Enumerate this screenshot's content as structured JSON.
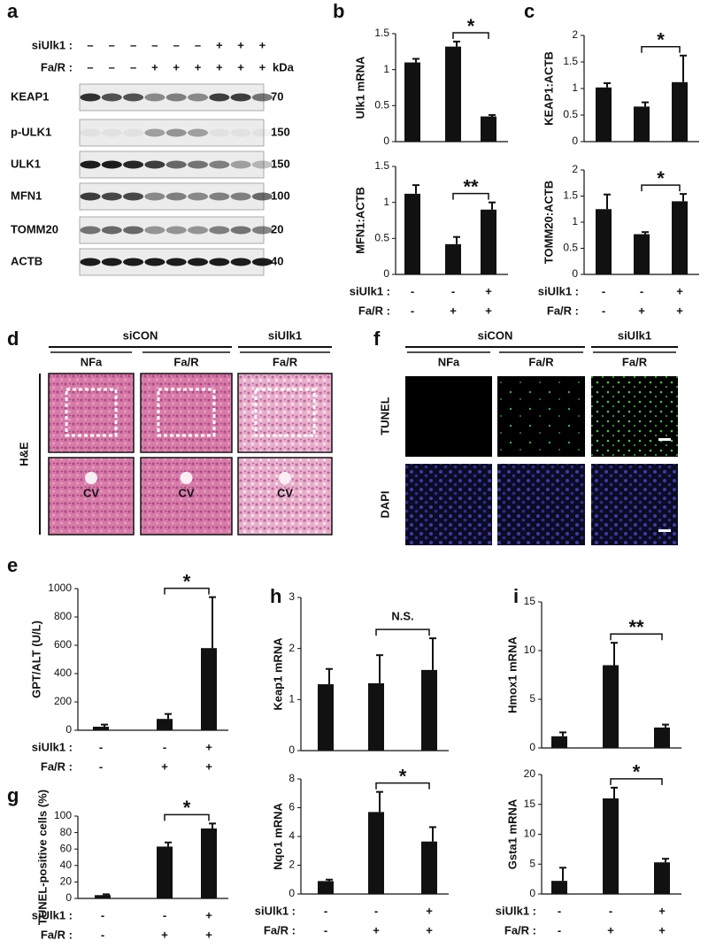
{
  "panel_labels": [
    "a",
    "b",
    "c",
    "d",
    "e",
    "f",
    "g",
    "h",
    "i"
  ],
  "blot": {
    "condition_rows": [
      {
        "label": "siUlk1 :",
        "signs": [
          "–",
          "–",
          "–",
          "–",
          "–",
          "–",
          "+",
          "+",
          "+"
        ]
      },
      {
        "label": "Fa/R :",
        "signs": [
          "–",
          "–",
          "–",
          "+",
          "+",
          "+",
          "+",
          "+",
          "+"
        ]
      }
    ],
    "kda_label": "kDa",
    "rows": [
      {
        "name": "KEAP1",
        "marker": 70
      },
      {
        "name": "p-ULK1",
        "marker": 150
      },
      {
        "name": "ULK1",
        "marker": 150
      },
      {
        "name": "MFN1",
        "marker": 100
      },
      {
        "name": "TOMM20",
        "marker": 20
      },
      {
        "name": "ACTB",
        "marker": 40
      }
    ]
  },
  "histology": {
    "group_headers": [
      "siCON",
      "siUlk1"
    ],
    "conditions": [
      "NFa",
      "Fa/R",
      "Fa/R"
    ],
    "stain": "H&E",
    "vessel_labels": [
      "CV",
      "CV",
      "CV"
    ]
  },
  "fluorescence": {
    "group_headers": [
      "siCON",
      "siUlk1"
    ],
    "conditions": [
      "NFa",
      "Fa/R",
      "Fa/R"
    ],
    "stains": [
      "TUNEL",
      "DAPI"
    ]
  },
  "chart_data": [
    {
      "type": "bar",
      "ylabel": "Ulk1 mRNA",
      "values": [
        1.1,
        1.32,
        0.35
      ],
      "errors": [
        0.05,
        0.07,
        0.02
      ],
      "ylim": [
        0,
        1.5
      ],
      "yticks": [
        0,
        0.5,
        1,
        1.5
      ],
      "color": "#111111",
      "significance": "*"
    },
    {
      "type": "bar",
      "ylabel": "MFN1:ACTB",
      "values": [
        1.12,
        0.42,
        0.9
      ],
      "errors": [
        0.12,
        0.1,
        0.1
      ],
      "ylim": [
        0,
        1.5
      ],
      "yticks": [
        0,
        0.5,
        1,
        1.5
      ],
      "color": "#111111",
      "significance": "**",
      "conditions": [
        {
          "label": "siUlk1 :",
          "signs": [
            "-",
            "-",
            "+"
          ]
        },
        {
          "label": "Fa/R :",
          "signs": [
            "-",
            "+",
            "+"
          ]
        }
      ]
    },
    {
      "type": "bar",
      "ylabel": "KEAP1:ACTB",
      "values": [
        1.02,
        0.66,
        1.12
      ],
      "errors": [
        0.08,
        0.08,
        0.5
      ],
      "ylim": [
        0,
        2
      ],
      "yticks": [
        0,
        0.5,
        1,
        1.5,
        2
      ],
      "color": "#111111",
      "significance": "*"
    },
    {
      "type": "bar",
      "ylabel": "TOMM20:ACTB",
      "values": [
        1.25,
        0.77,
        1.4
      ],
      "errors": [
        0.28,
        0.04,
        0.14
      ],
      "ylim": [
        0,
        2
      ],
      "yticks": [
        0,
        0.5,
        1,
        1.5,
        2
      ],
      "color": "#111111",
      "significance": "*",
      "conditions": [
        {
          "label": "siUlk1 :",
          "signs": [
            "-",
            "-",
            "+"
          ]
        },
        {
          "label": "Fa/R :",
          "signs": [
            "-",
            "+",
            "+"
          ]
        }
      ]
    },
    {
      "type": "bar",
      "ylabel": "GPT/ALT (U/L)",
      "values": [
        25,
        80,
        580
      ],
      "errors": [
        15,
        35,
        360
      ],
      "ylim": [
        0,
        1000
      ],
      "yticks": [
        0,
        200,
        400,
        600,
        800,
        1000
      ],
      "color": "#111111",
      "significance": "*",
      "conditions": [
        {
          "label": "siUlk1 :",
          "signs": [
            "-",
            "-",
            "+"
          ]
        },
        {
          "label": "Fa/R :",
          "signs": [
            "-",
            "+",
            "+"
          ]
        }
      ]
    },
    {
      "type": "bar",
      "ylabel": "TUNEL-positive cells (%)",
      "values": [
        4,
        63,
        85
      ],
      "errors": [
        1,
        5,
        6
      ],
      "ylim": [
        0,
        100
      ],
      "yticks": [
        0,
        20,
        40,
        60,
        80,
        100
      ],
      "color": "#111111",
      "significance": "*",
      "conditions": [
        {
          "label": "siUlk1 :",
          "signs": [
            "-",
            "-",
            "+"
          ]
        },
        {
          "label": "Fa/R :",
          "signs": [
            "-",
            "+",
            "+"
          ]
        }
      ]
    },
    {
      "type": "bar",
      "ylabel": "Keap1 mRNA",
      "values": [
        1.3,
        1.32,
        1.58
      ],
      "errors": [
        0.3,
        0.55,
        0.62
      ],
      "ylim": [
        0,
        3
      ],
      "yticks": [
        0,
        1,
        2,
        3
      ],
      "color": "#111111",
      "significance": "N.S."
    },
    {
      "type": "bar",
      "ylabel": "Nqo1 mRNA",
      "values": [
        0.9,
        5.7,
        3.65
      ],
      "errors": [
        0.1,
        1.4,
        1.0
      ],
      "ylim": [
        0,
        8
      ],
      "yticks": [
        0,
        2,
        4,
        6,
        8
      ],
      "color": "#111111",
      "significance": "*",
      "conditions": [
        {
          "label": "siUlk1 :",
          "signs": [
            "-",
            "-",
            "+"
          ]
        },
        {
          "label": "Fa/R :",
          "signs": [
            "-",
            "+",
            "+"
          ]
        }
      ]
    },
    {
      "type": "bar",
      "ylabel": "Hmox1 mRNA",
      "values": [
        1.2,
        8.5,
        2.1
      ],
      "errors": [
        0.4,
        2.3,
        0.3
      ],
      "ylim": [
        0,
        15
      ],
      "yticks": [
        0,
        5,
        10,
        15
      ],
      "color": "#111111",
      "significance": "**"
    },
    {
      "type": "bar",
      "ylabel": "Gsta1 mRNA",
      "values": [
        2.2,
        16,
        5.3
      ],
      "errors": [
        2.2,
        1.8,
        0.6
      ],
      "ylim": [
        0,
        20
      ],
      "yticks": [
        0,
        5,
        10,
        15,
        20
      ],
      "color": "#111111",
      "significance": "*",
      "conditions": [
        {
          "label": "siUlk1 :",
          "signs": [
            "-",
            "-",
            "+"
          ]
        },
        {
          "label": "Fa/R :",
          "signs": [
            "-",
            "+",
            "+"
          ]
        }
      ]
    }
  ]
}
